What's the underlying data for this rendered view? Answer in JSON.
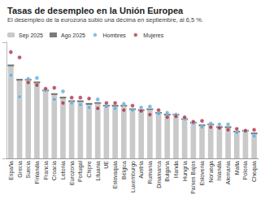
{
  "chart_data": {
    "type": "bar",
    "title": "Tasas de desempleo en la Unión Europea",
    "subtitle": "El desempleo de la eurozona subió una décima en septiembre, al 6,5 %.",
    "categories": [
      "España",
      "Grecia",
      "Suecia",
      "Finlandia",
      "Francia",
      "Croacia",
      "Letonia",
      "Eurozona",
      "Portugal",
      "Chipre",
      "Lituania",
      "UE",
      "Eslovaquia",
      "Bélgica",
      "Luxemburgo",
      "Austria",
      "Rumanía",
      "Dinamarca",
      "Bulgaria",
      "Irlanda",
      "Hungría",
      "Países Bajos",
      "Eslovenia",
      "Noruega",
      "Islandia",
      "Alemania",
      "Malta",
      "Polonia",
      "Chequia"
    ],
    "series": [
      {
        "name": "Sep 2025",
        "type": "bar",
        "color": "#c9c9c9",
        "values": [
          10.5,
          8.9,
          8.7,
          8.6,
          7.7,
          7.2,
          6.9,
          6.5,
          6.4,
          6.2,
          6.1,
          6.0,
          5.9,
          5.8,
          5.6,
          5.5,
          5.4,
          5.2,
          4.9,
          4.8,
          4.5,
          4.0,
          3.8,
          3.7,
          3.6,
          3.5,
          3.1,
          3.0,
          2.8
        ]
      },
      {
        "name": "Ago 2025",
        "type": "scatter",
        "marker": "dash",
        "color": "#5a5a5a",
        "values": [
          10.4,
          8.8,
          8.8,
          8.5,
          7.6,
          7.2,
          6.8,
          6.4,
          6.4,
          6.1,
          6.2,
          5.9,
          5.9,
          5.9,
          5.5,
          5.4,
          5.5,
          5.1,
          4.9,
          4.9,
          4.4,
          4.0,
          3.7,
          3.8,
          3.5,
          3.5,
          3.0,
          3.1,
          2.8
        ]
      },
      {
        "name": "Hombres",
        "type": "scatter",
        "marker": "circle",
        "color": "#5dade2",
        "values": [
          9.3,
          6.9,
          8.9,
          9.0,
          7.6,
          6.6,
          7.5,
          6.2,
          6.0,
          5.7,
          6.6,
          5.8,
          5.6,
          6.1,
          5.4,
          5.7,
          5.8,
          5.0,
          5.1,
          4.9,
          4.4,
          3.9,
          3.5,
          3.9,
          3.8,
          3.8,
          2.9,
          3.0,
          2.5
        ]
      },
      {
        "name": "Mujeres",
        "type": "scatter",
        "marker": "circle",
        "color": "#a8324a",
        "values": [
          11.9,
          11.3,
          8.5,
          8.2,
          7.8,
          7.9,
          6.2,
          6.8,
          6.8,
          6.7,
          5.6,
          6.2,
          6.2,
          5.4,
          5.9,
          5.3,
          4.9,
          5.4,
          4.6,
          4.7,
          4.6,
          4.1,
          4.2,
          3.5,
          3.4,
          3.2,
          3.3,
          3.1,
          3.2
        ]
      }
    ],
    "ylim": [
      0,
      13
    ],
    "yticks": [
      0,
      13
    ],
    "tick_labels": "x",
    "grid": false,
    "legend": "top"
  }
}
